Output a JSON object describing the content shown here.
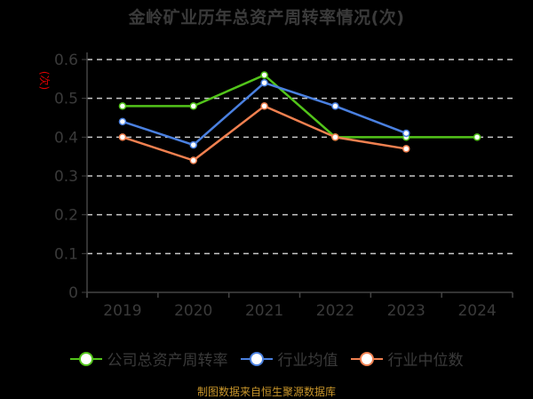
{
  "title": "金岭矿业历年总资产周转率情况(次)",
  "y_unit_label": "(次)",
  "source": "制图数据来自恒生聚源数据库",
  "legend": [
    {
      "label": "公司总资产周转率",
      "color": "#52c41a"
    },
    {
      "label": "行业均值",
      "color": "#4a80e0"
    },
    {
      "label": "行业中位数",
      "color": "#f08050"
    }
  ],
  "chart_data": {
    "type": "line",
    "title": "金岭矿业历年总资产周转率情况(次)",
    "xlabel": "",
    "ylabel": "(次)",
    "categories": [
      "2019",
      "2020",
      "2021",
      "2022",
      "2023",
      "2024"
    ],
    "ylim": [
      0,
      0.6
    ],
    "yticks": [
      "0",
      "0.1",
      "0.2",
      "0.3",
      "0.4",
      "0.5",
      "0.6"
    ],
    "grid": true,
    "legend_position": "bottom",
    "series": [
      {
        "name": "公司总资产周转率",
        "color": "#52c41a",
        "values": [
          0.48,
          0.48,
          0.56,
          0.4,
          0.4,
          0.4
        ]
      },
      {
        "name": "行业均值",
        "color": "#4a80e0",
        "values": [
          0.44,
          0.38,
          0.54,
          0.48,
          0.41,
          null
        ]
      },
      {
        "name": "行业中位数",
        "color": "#f08050",
        "values": [
          0.4,
          0.34,
          0.48,
          0.4,
          0.37,
          null
        ]
      }
    ]
  }
}
